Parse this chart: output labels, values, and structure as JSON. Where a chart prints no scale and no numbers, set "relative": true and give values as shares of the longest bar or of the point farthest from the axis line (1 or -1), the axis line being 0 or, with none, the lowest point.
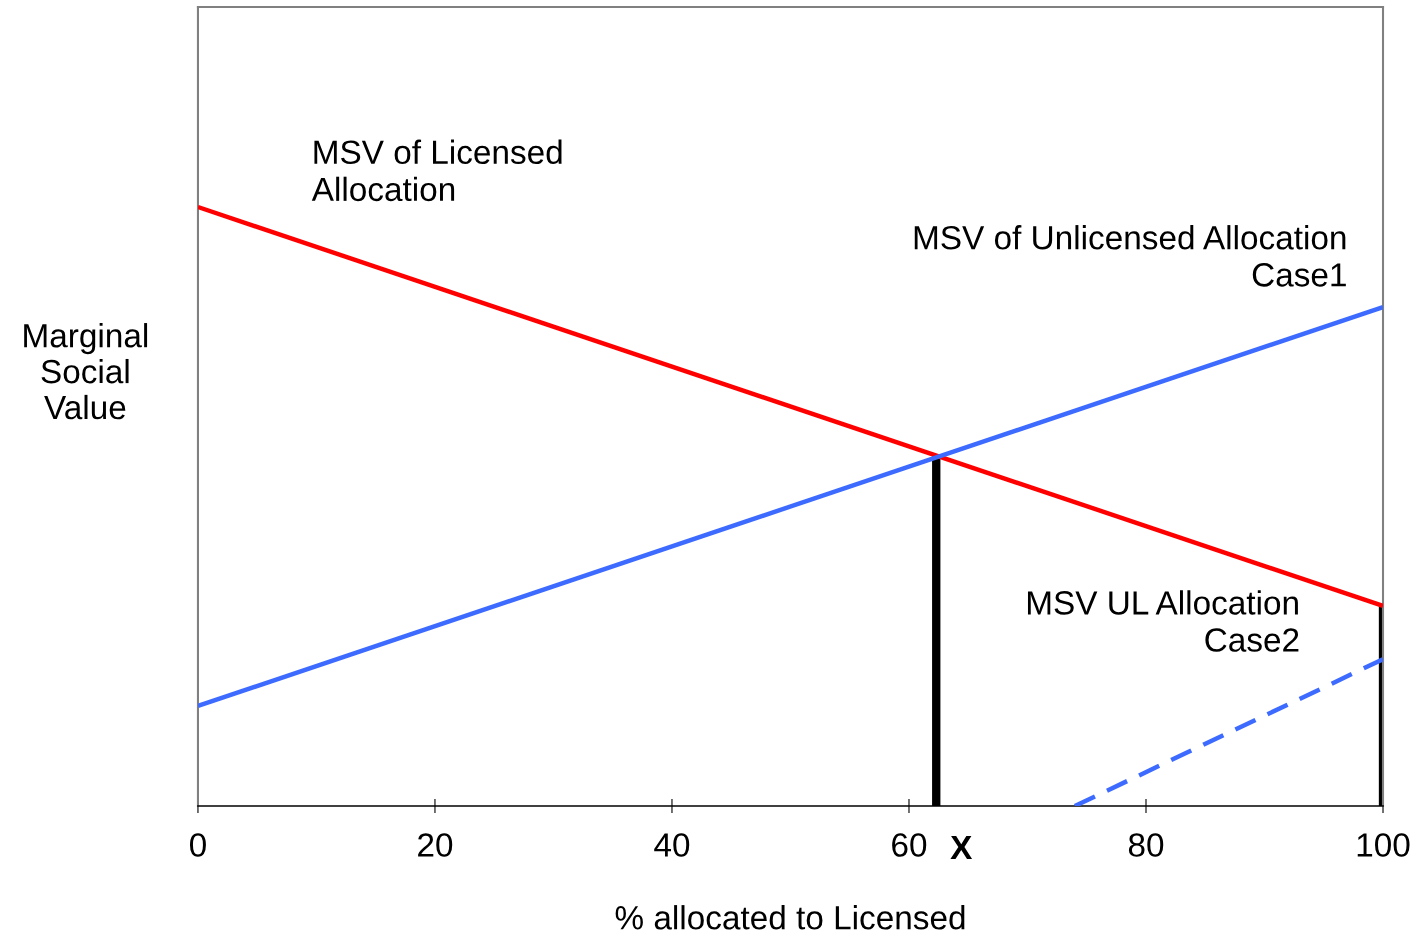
{
  "chart_data": {
    "type": "line",
    "relative": true,
    "xlabel": "% allocated to Licensed",
    "ylabel": "Marginal\nSocial\nValue",
    "xlim": [
      0,
      100
    ],
    "xticks": [
      0,
      20,
      40,
      60,
      80,
      100
    ],
    "grid": false,
    "legend": false,
    "marker": "none",
    "series": [
      {
        "color": "#ff0000",
        "x": [
          0,
          100
        ],
        "values": [
          1,
          0.334
        ],
        "line_style": "solid"
      },
      {
        "color": "#3d6bff",
        "x": [
          0,
          100
        ],
        "values": [
          0.167,
          0.833
        ],
        "line_style": "solid"
      },
      {
        "color": "#3d6bff",
        "x": [
          74,
          100
        ],
        "values": [
          0,
          0.245
        ],
        "line_style": "dashed"
      },
      {
        "color": "#000000",
        "x": [
          62.3,
          62.3
        ],
        "values": [
          0,
          0.584
        ],
        "line_style": "solid"
      },
      {
        "color": "#000000",
        "x": [
          100,
          100
        ],
        "values": [
          0,
          0.334
        ],
        "line_style": "solid"
      }
    ],
    "annotations": [
      "MSV of Licensed\nAllocation",
      "MSV of Unlicensed Allocation\nCase1",
      "MSV UL Allocation\nCase2",
      {
        "text": "X",
        "x": 62.3,
        "y": 0
      }
    ]
  }
}
